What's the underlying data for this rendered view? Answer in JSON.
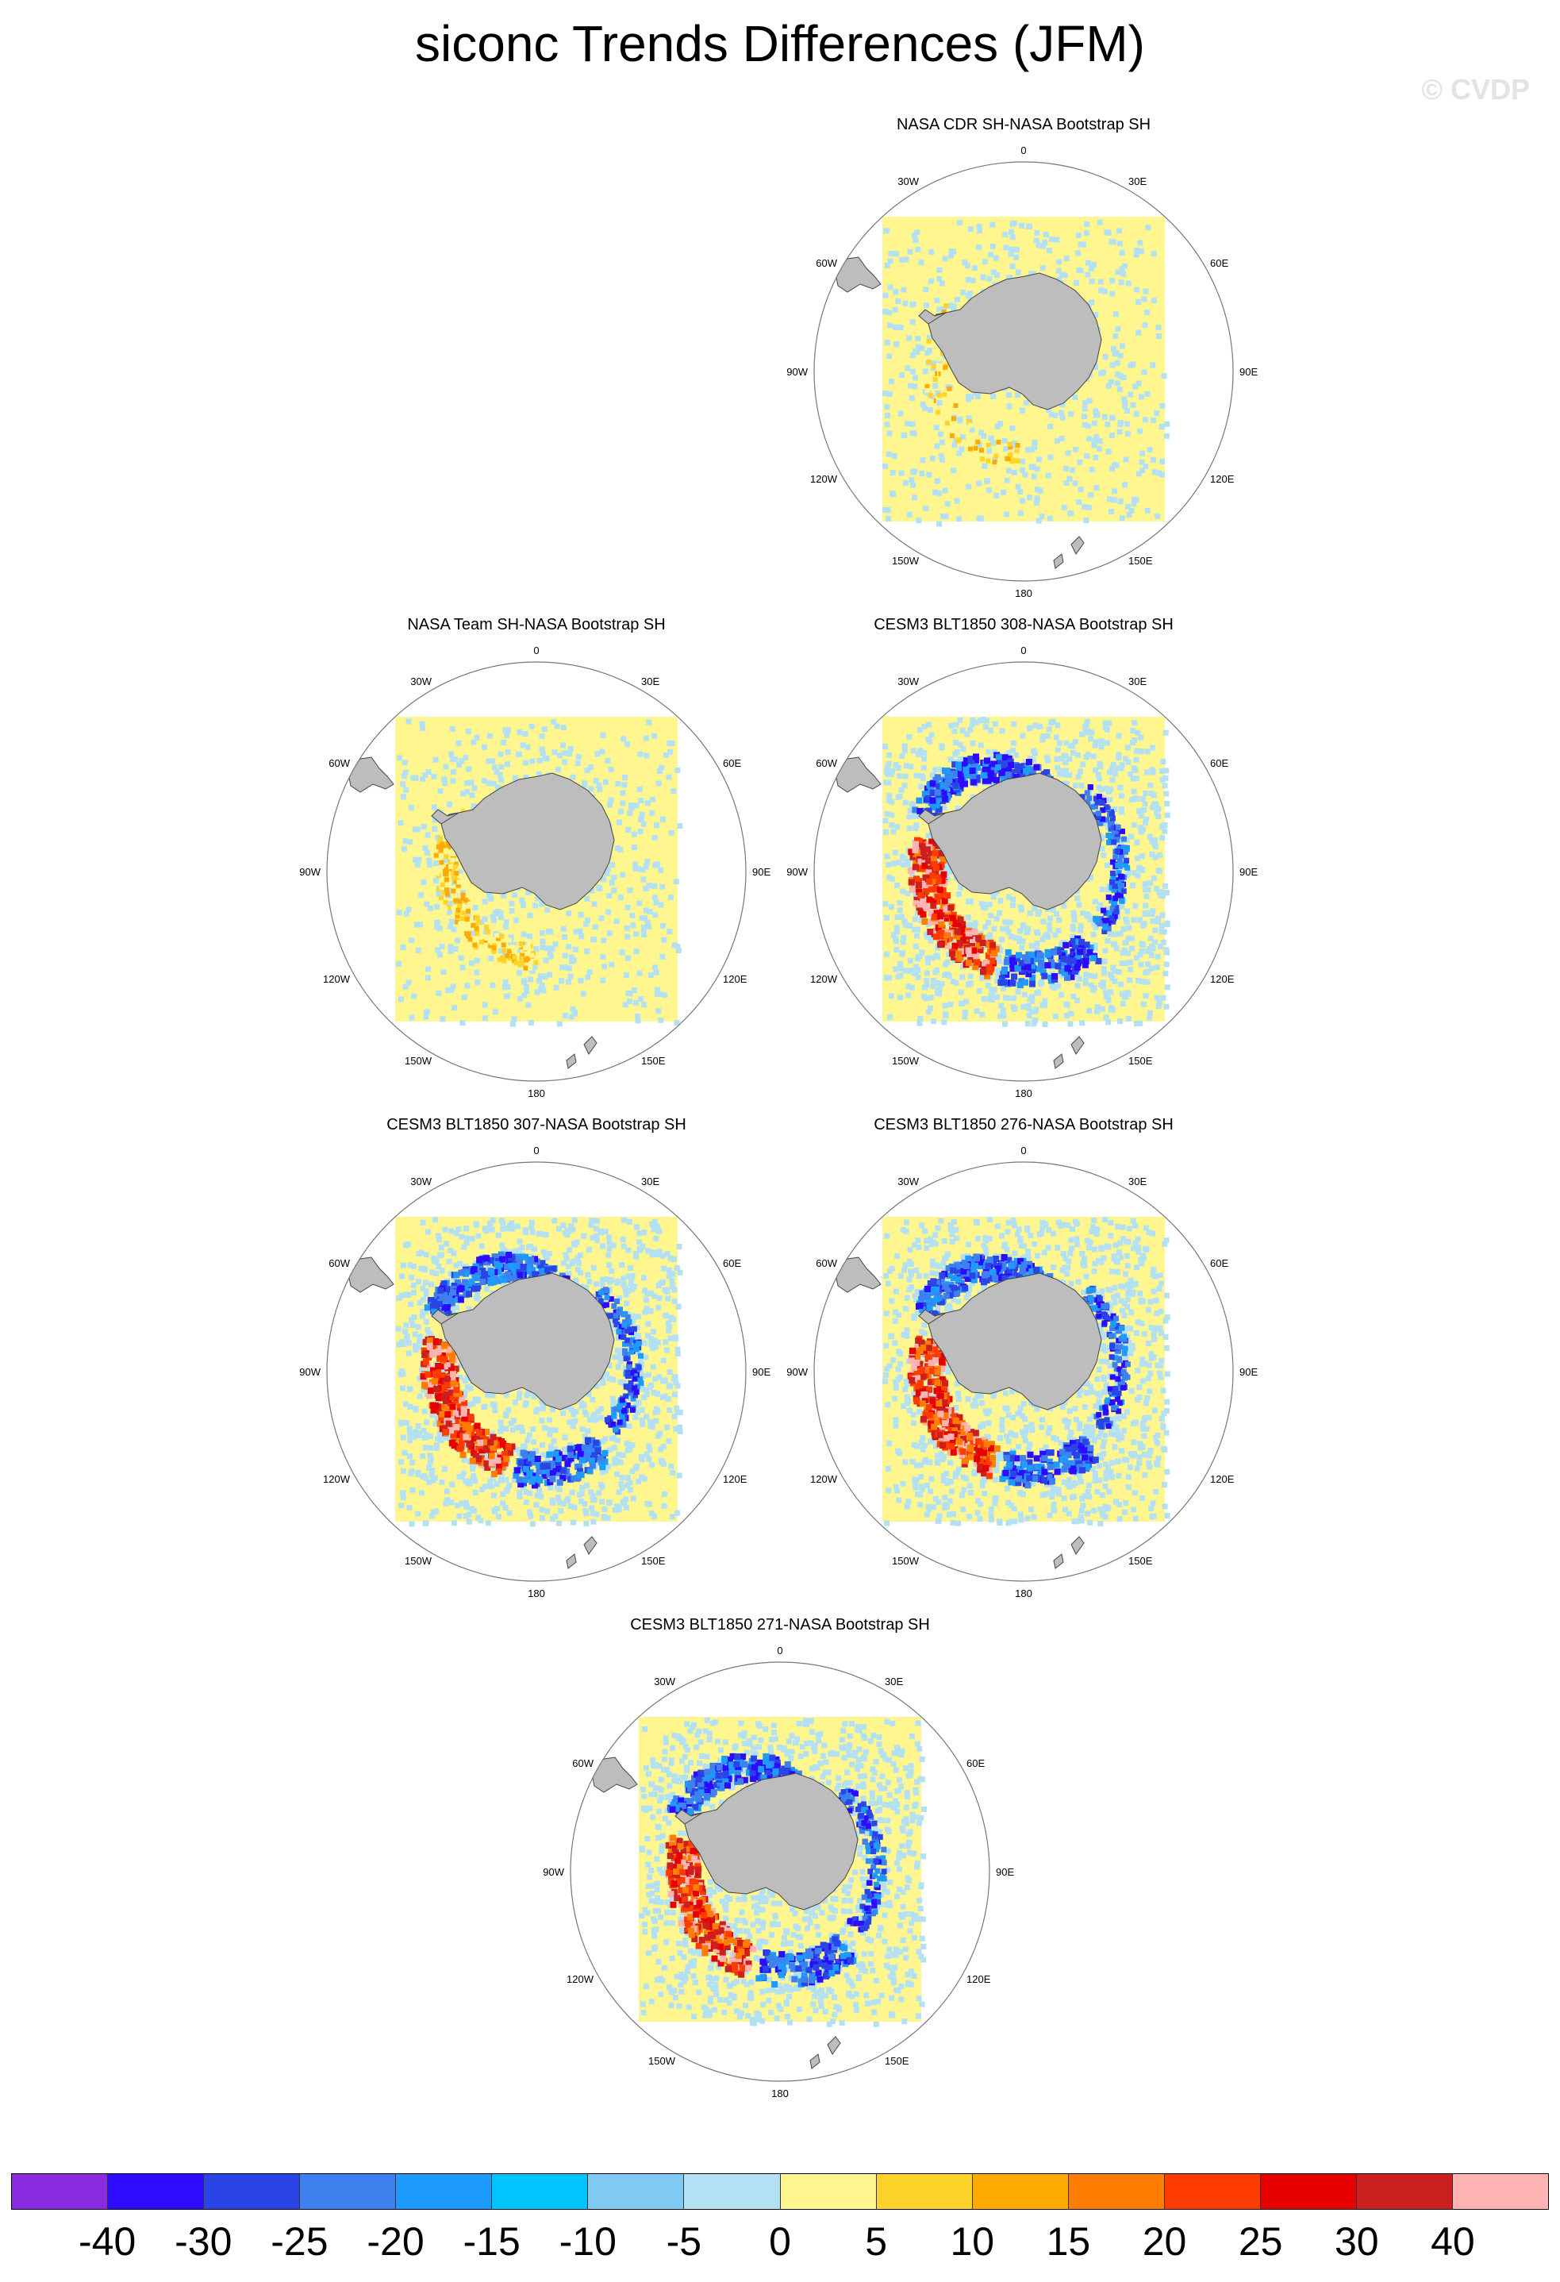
{
  "title": "siconc Trends Differences (JFM)",
  "watermark": "© CVDP",
  "grid_labels": {
    "top": "0",
    "bottom": "180",
    "w30": "30W",
    "e30": "30E",
    "w60": "60W",
    "e60": "60E",
    "w90": "90W",
    "e90": "90E",
    "w120": "120W",
    "e120": "120E",
    "w150": "150W",
    "e150": "150E"
  },
  "panels": [
    {
      "title": "NASA CDR SH-NASA Bootstrap SH",
      "pattern": "cdr"
    },
    {
      "title": "NASA Team SH-NASA Bootstrap SH",
      "pattern": "team"
    },
    {
      "title": "CESM3 BLT1850 308-NASA Bootstrap SH",
      "pattern": "model"
    },
    {
      "title": "CESM3 BLT1850 307-NASA Bootstrap SH",
      "pattern": "model"
    },
    {
      "title": "CESM3 BLT1850 276-NASA Bootstrap SH",
      "pattern": "model"
    },
    {
      "title": "CESM3 BLT1850 271-NASA Bootstrap SH",
      "pattern": "model"
    }
  ],
  "colorbar": {
    "colors": [
      "#8a2be2",
      "#2c0bff",
      "#2a44e6",
      "#3f80ef",
      "#1e9bff",
      "#00c4ff",
      "#7fcaf2",
      "#b3e0f2",
      "#fff68f",
      "#ffd42a",
      "#ffaa00",
      "#ff7d00",
      "#ff3c00",
      "#e60000",
      "#cc1f1f",
      "#ffb3b3"
    ],
    "labels": [
      "-40",
      "-30",
      "-25",
      "-20",
      "-15",
      "-10",
      "-5",
      "0",
      "5",
      "10",
      "15",
      "20",
      "25",
      "30",
      "40"
    ]
  }
}
